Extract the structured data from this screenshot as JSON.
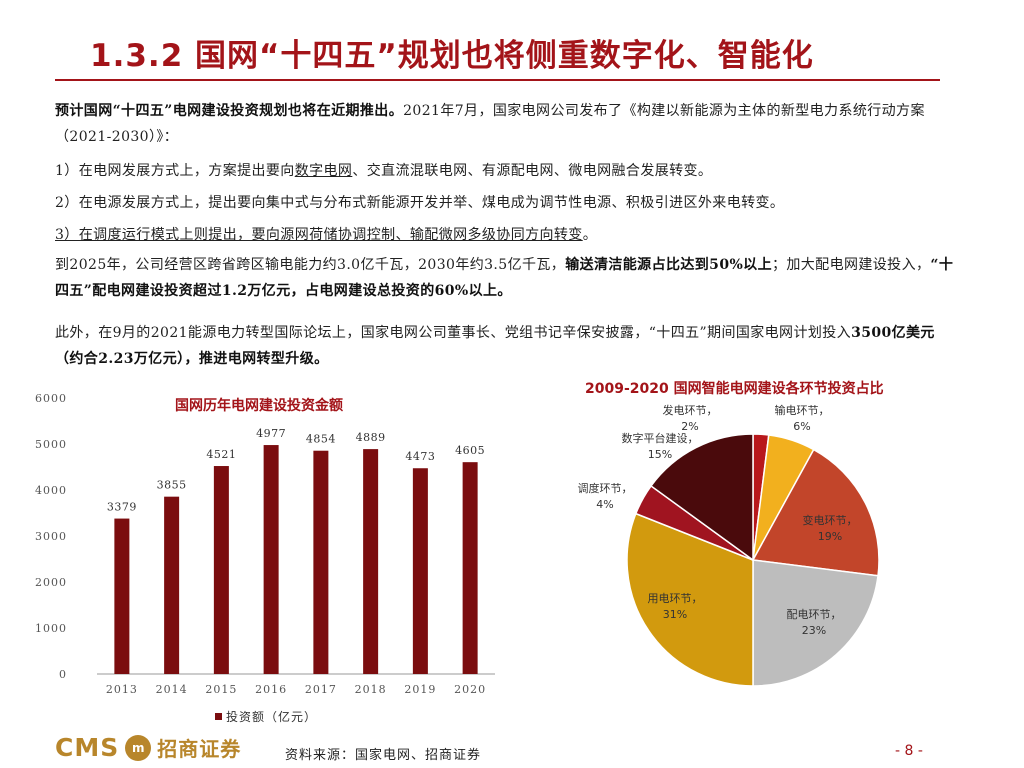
{
  "title": "1.3.2 国网“十四五”规划也将侧重数字化、智能化",
  "paragraphs": {
    "p1_bold": "预计国网“十四五”电网建设投资规划也将在近期推出。",
    "p1_rest": "2021年7月，国家电网公司发布了《构建以新能源为主体的新型电力系统行动方案（2021-2030）》：",
    "p2_prefix": "1）在电网发展方式上，方案提出要向",
    "p2_underlined": "数字电网",
    "p2_rest": "、交直流混联电网、有源配电网、微电网融合发展转变。",
    "p3": "2）在电源发展方式上，提出要向集中式与分布式新能源开发并举、煤电成为调节性电源、积极引进区外来电转变。",
    "p4": "3）在调度运行模式上则提出，要向源网荷储协调控制、输配微网多级协同方向转变",
    "p4_end": "。",
    "p5_a": "到2025年，公司经营区跨省跨区输电能力约3.0亿千瓦，2030年约3.5亿千瓦，",
    "p5_bold1": "输送清洁能源占比达到50%以上",
    "p5_b": "；加大配电网建设投入，",
    "p5_bold2": "“十四五”配电网建设投资超过1.2万亿元，占电网建设总投资的60%以上。",
    "p6_a": "此外，在9月的2021能源电力转型国际论坛上，国家电网公司董事长、党组书记辛保安披露，“十四五”期间国家电网计划投入",
    "p6_bold": "3500亿美元（约合2.23万亿元），推进电网转型升级。"
  },
  "footer": {
    "logo_text": "CMS",
    "logo_mark": "m",
    "company": "招商证券",
    "source": "资料来源：国家电网、招商证券",
    "page": "- 8 -"
  },
  "chart_data": [
    {
      "type": "bar",
      "title": "国网历年电网建设投资金额",
      "categories": [
        "2013",
        "2014",
        "2015",
        "2016",
        "2017",
        "2018",
        "2019",
        "2020"
      ],
      "series": [
        {
          "name": "投资额（亿元）",
          "values": [
            3379,
            3855,
            4521,
            4977,
            4854,
            4889,
            4473,
            4605
          ],
          "color": "#7b0d0f"
        }
      ],
      "value_labels": [
        "3379",
        "3855",
        "4521",
        "4977",
        "4854",
        "4889",
        "4473",
        "4605"
      ],
      "yticks": [
        "0",
        "1000",
        "2000",
        "3000",
        "4000",
        "5000",
        "6000"
      ],
      "ylim": [
        0,
        6000
      ],
      "legend": "bottom",
      "grid": false
    },
    {
      "type": "pie",
      "title": "2009-2020 国网智能电网建设各环节投资占比",
      "slices": [
        {
          "label": "发电环节，",
          "pct": "2%",
          "value": 2,
          "color": "#b8181c"
        },
        {
          "label": "输电环节，",
          "pct": "6%",
          "value": 6,
          "color": "#f2b01e"
        },
        {
          "label": "变电环节，",
          "pct": "19%",
          "value": 19,
          "color": "#c2452a"
        },
        {
          "label": "配电环节，",
          "pct": "23%",
          "value": 23,
          "color": "#bdbdbd"
        },
        {
          "label": "用电环节，",
          "pct": "31%",
          "value": 31,
          "color": "#d29a0e"
        },
        {
          "label": "调度环节，",
          "pct": "4%",
          "value": 4,
          "color": "#a01420"
        },
        {
          "label": "数字平台建设，",
          "pct": "15%",
          "value": 15,
          "color": "#4a0a0c"
        }
      ],
      "legend": "none"
    }
  ]
}
